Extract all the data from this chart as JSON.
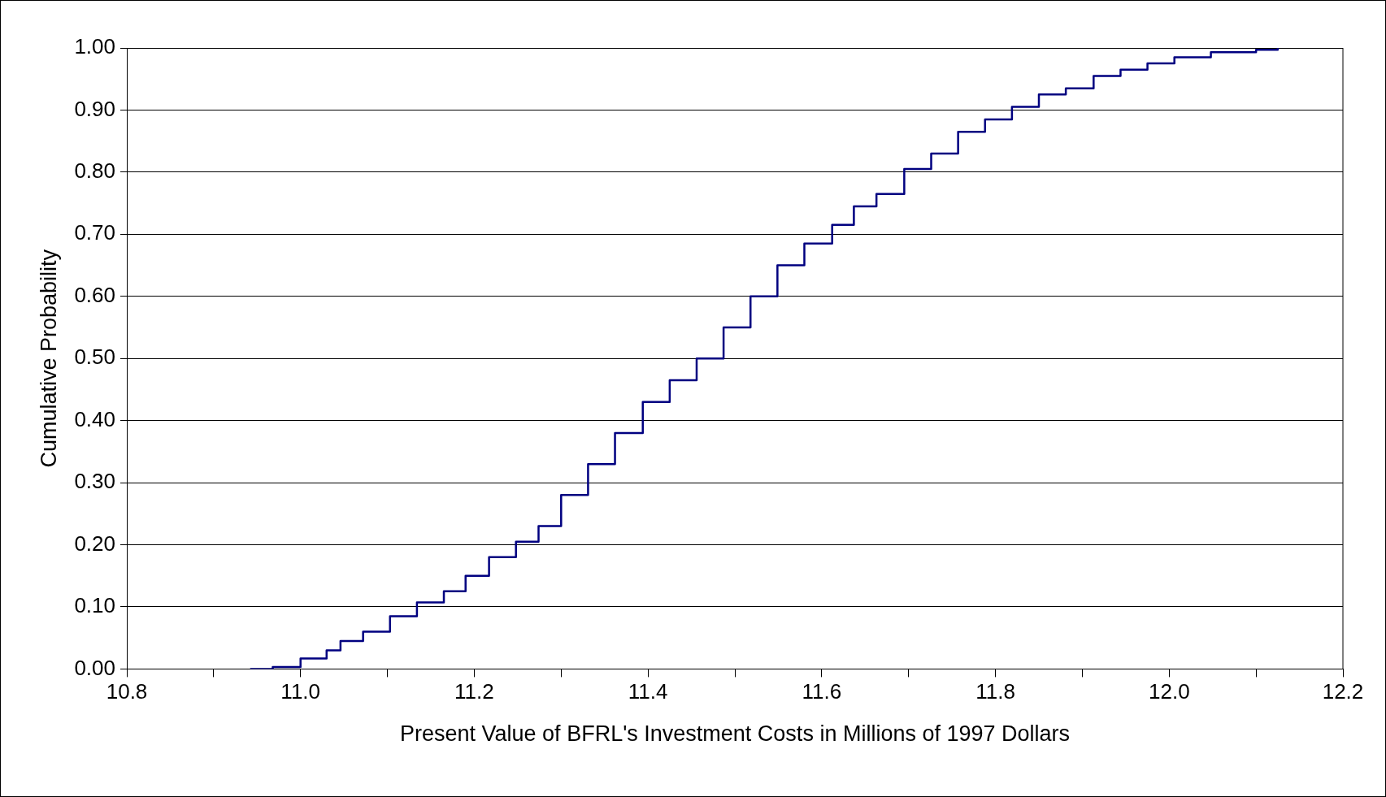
{
  "chart_data": {
    "type": "step",
    "xlabel": "Present Value of BFRL's Investment Costs in Millions of 1997 Dollars",
    "ylabel": "Cumulative Probability",
    "x": [
      10.942,
      10.968,
      11.0,
      11.03,
      11.046,
      11.072,
      11.103,
      11.134,
      11.165,
      11.19,
      11.217,
      11.248,
      11.274,
      11.3,
      11.331,
      11.362,
      11.394,
      11.425,
      11.456,
      11.487,
      11.518,
      11.549,
      11.58,
      11.612,
      11.637,
      11.663,
      11.695,
      11.726,
      11.757,
      11.788,
      11.819,
      11.85,
      11.881,
      11.913,
      11.944,
      11.975,
      12.006,
      12.048,
      12.1,
      12.125
    ],
    "series": [
      {
        "color": "#000080",
        "values": [
          0,
          0.003,
          0.017,
          0.03,
          0.045,
          0.06,
          0.085,
          0.107,
          0.125,
          0.15,
          0.18,
          0.205,
          0.23,
          0.28,
          0.33,
          0.38,
          0.43,
          0.465,
          0.5,
          0.55,
          0.6,
          0.65,
          0.685,
          0.715,
          0.745,
          0.765,
          0.805,
          0.83,
          0.865,
          0.885,
          0.905,
          0.925,
          0.935,
          0.955,
          0.965,
          0.975,
          0.985,
          0.993,
          0.997,
          1.0
        ]
      }
    ],
    "xlim": [
      10.8,
      12.2
    ],
    "xticks": [
      {
        "value": 10.8,
        "label": "10.8"
      },
      {
        "value": 10.9,
        "label": null
      },
      {
        "value": 11.0,
        "label": "11.0"
      },
      {
        "value": 11.1,
        "label": null
      },
      {
        "value": 11.2,
        "label": "11.2"
      },
      {
        "value": 11.3,
        "label": null
      },
      {
        "value": 11.4,
        "label": "11.4"
      },
      {
        "value": 11.5,
        "label": null
      },
      {
        "value": 11.6,
        "label": "11.6"
      },
      {
        "value": 11.7,
        "label": null
      },
      {
        "value": 11.8,
        "label": "11.8"
      },
      {
        "value": 11.9,
        "label": null
      },
      {
        "value": 12.0,
        "label": "12.0"
      },
      {
        "value": 12.1,
        "label": null
      },
      {
        "value": 12.2,
        "label": "12.2"
      }
    ],
    "ylim": [
      0,
      1
    ],
    "yticks": [
      {
        "value": 0,
        "label": "0.00"
      },
      {
        "value": 0.1,
        "label": "0.10"
      },
      {
        "value": 0.2,
        "label": "0.20"
      },
      {
        "value": 0.3,
        "label": "0.30"
      },
      {
        "value": 0.4,
        "label": "0.40"
      },
      {
        "value": 0.5,
        "label": "0.50"
      },
      {
        "value": 0.6,
        "label": "0.60"
      },
      {
        "value": 0.7,
        "label": "0.70"
      },
      {
        "value": 0.8,
        "label": "0.80"
      },
      {
        "value": 0.9,
        "label": "0.90"
      },
      {
        "value": 1.0,
        "label": "1.00"
      }
    ],
    "grid": "y",
    "legend": false,
    "marker": "none",
    "line_style": "solid"
  }
}
